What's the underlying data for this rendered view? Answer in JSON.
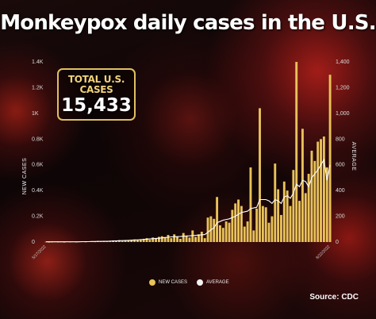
{
  "title": "Monkeypox daily cases in the U.S.",
  "total_box": {
    "label": "TOTAL U.S. CASES",
    "value": "15,433"
  },
  "source": "Source: CDC",
  "chart_data": {
    "type": "bar",
    "title": "Monkeypox daily cases in the U.S.",
    "ylabel": "NEW CASES",
    "y2label": "AVERAGE",
    "ylim": [
      0,
      1400
    ],
    "y2lim": [
      0,
      1400
    ],
    "yticks": [
      "0",
      "0.2K",
      "0.4K",
      "0.6K",
      "0.8K",
      "1K",
      "1.2K",
      "1.4K"
    ],
    "y2ticks": [
      "0",
      "200",
      "400",
      "600",
      "800",
      "1,000",
      "1,200",
      "1,400"
    ],
    "legend_position": "bottom",
    "grid": false,
    "colors": {
      "bars": "#e8c25a",
      "line": "#ffffff"
    },
    "x_first_label": "5/17/2022",
    "x_last_label": "8/22/2022",
    "series": [
      {
        "name": "NEW CASES",
        "type": "bar",
        "values": [
          2,
          0,
          1,
          3,
          1,
          2,
          0,
          4,
          2,
          3,
          1,
          5,
          3,
          2,
          6,
          4,
          3,
          8,
          5,
          7,
          4,
          10,
          12,
          9,
          15,
          8,
          14,
          12,
          18,
          20,
          16,
          22,
          25,
          30,
          18,
          35,
          28,
          40,
          45,
          38,
          55,
          30,
          60,
          42,
          25,
          70,
          50,
          35,
          90,
          40,
          60,
          80,
          30,
          190,
          200,
          180,
          350,
          130,
          110,
          160,
          150,
          250,
          300,
          330,
          280,
          120,
          160,
          580,
          90,
          260,
          1040,
          280,
          270,
          150,
          200,
          610,
          410,
          210,
          470,
          400,
          280,
          560,
          1400,
          320,
          880,
          380,
          530,
          710,
          630,
          780,
          800,
          820,
          580,
          1300
        ],
        "last_bar_date": "8/22/2022"
      },
      {
        "name": "AVERAGE",
        "type": "line",
        "values": [
          2,
          2,
          2,
          2,
          2,
          2,
          2,
          2,
          2,
          2,
          2,
          2,
          3,
          3,
          3,
          4,
          4,
          5,
          5,
          6,
          6,
          7,
          8,
          9,
          10,
          11,
          12,
          13,
          14,
          16,
          17,
          18,
          20,
          22,
          24,
          26,
          28,
          30,
          32,
          35,
          37,
          40,
          41,
          42,
          43,
          45,
          47,
          48,
          50,
          52,
          54,
          56,
          58,
          75,
          95,
          110,
          150,
          160,
          170,
          175,
          180,
          190,
          200,
          215,
          230,
          235,
          240,
          260,
          265,
          270,
          330,
          330,
          330,
          320,
          300,
          330,
          320,
          300,
          350,
          360,
          340,
          380,
          450,
          430,
          480,
          470,
          430,
          500,
          530,
          560,
          600,
          640,
          480,
          600
        ]
      }
    ]
  }
}
